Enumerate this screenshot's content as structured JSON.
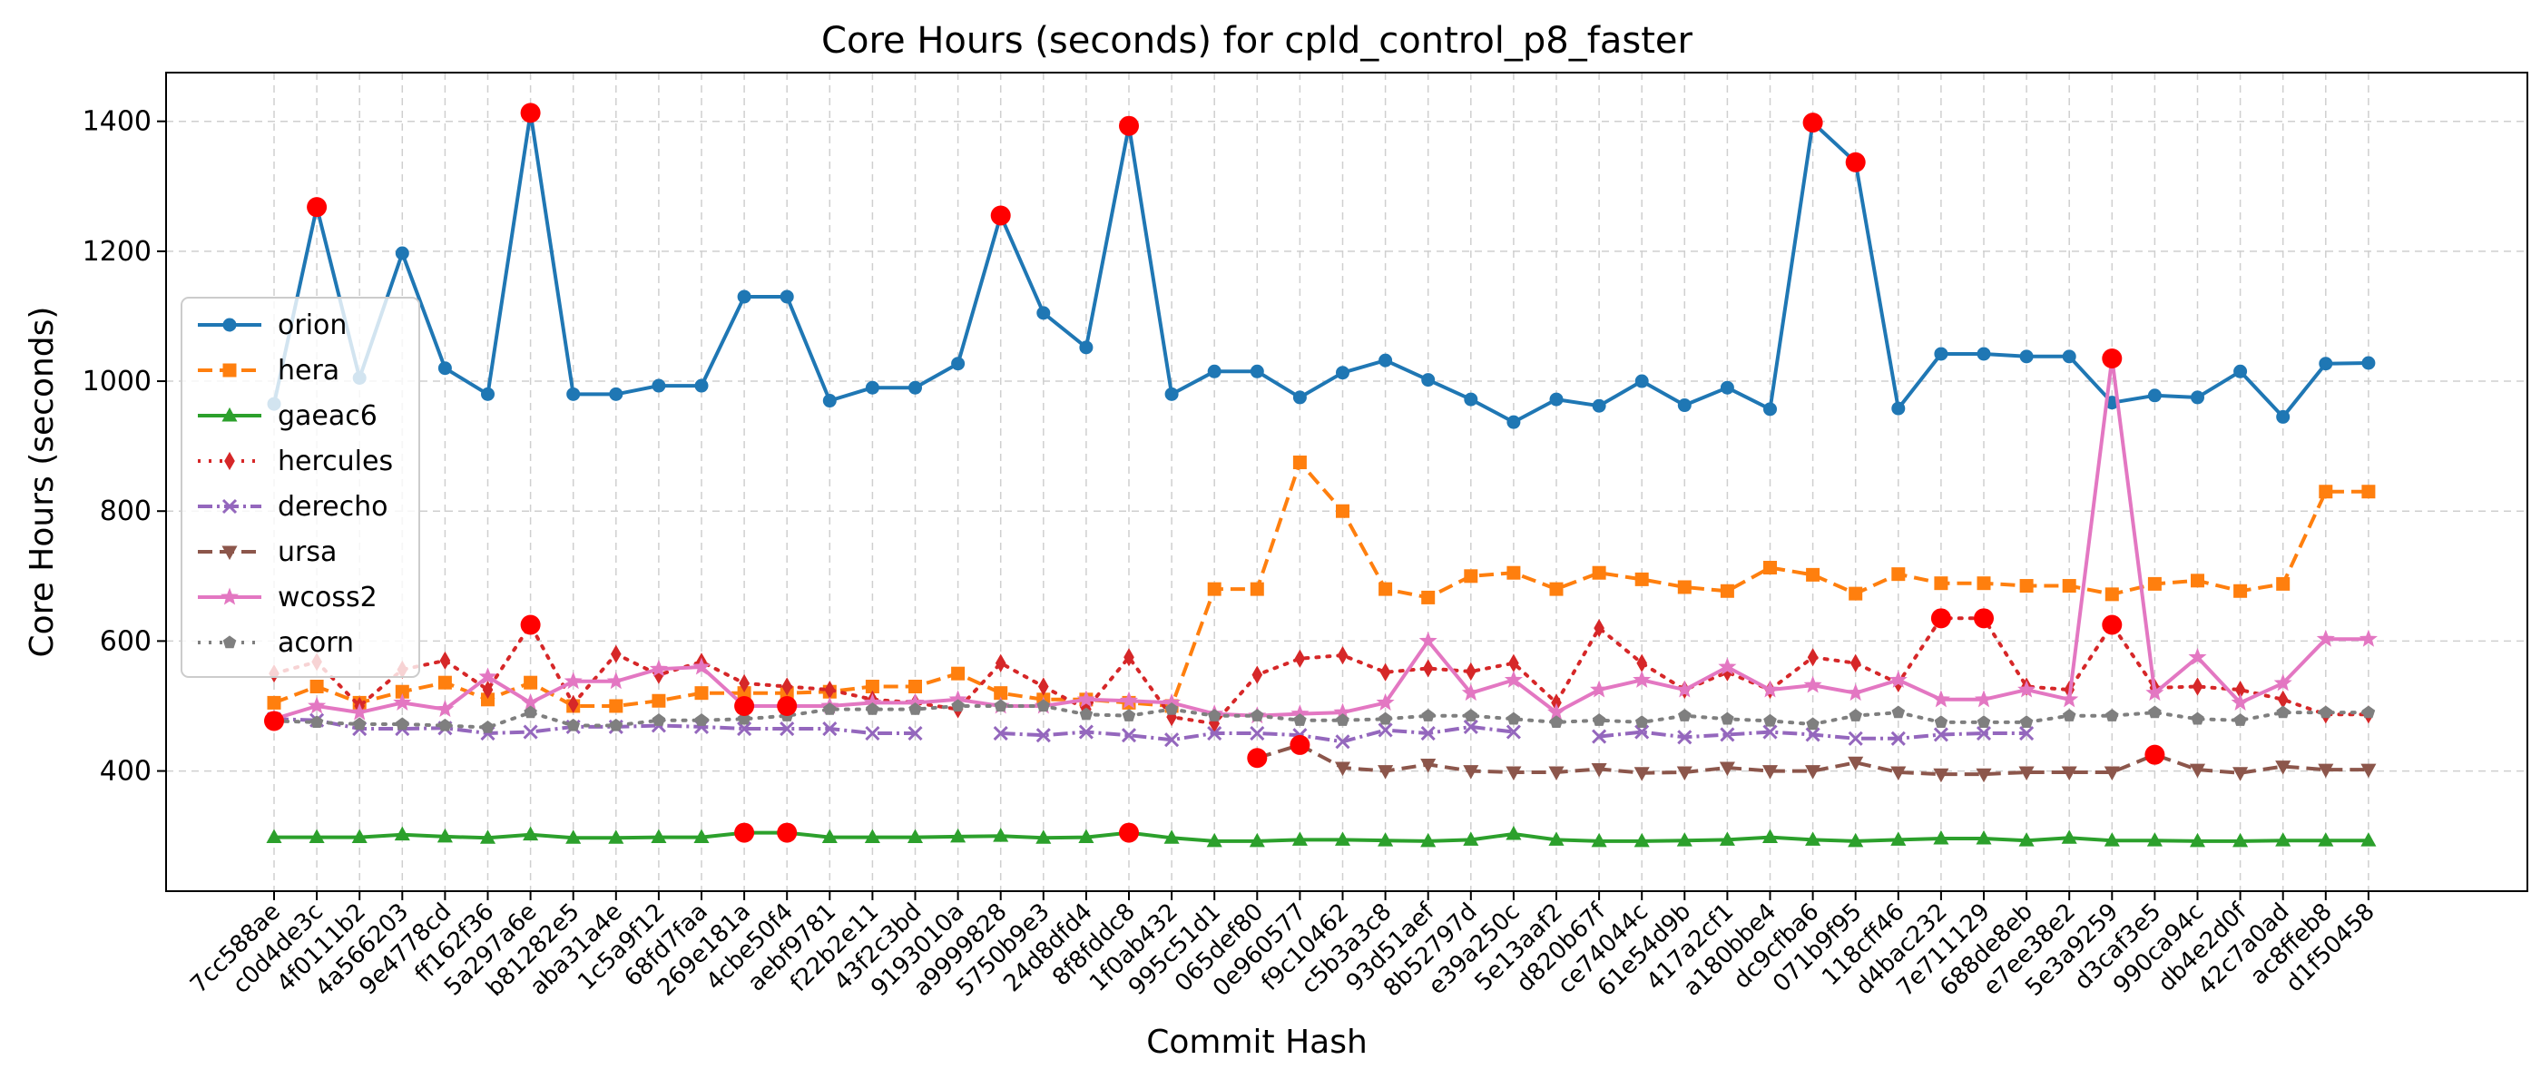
{
  "chart_data": {
    "type": "line",
    "title": "Core Hours (seconds) for cpld_control_p8_faster",
    "xlabel": "Commit Hash",
    "ylabel": "Core Hours (seconds)",
    "ylim": [
      215,
      1475
    ],
    "yticks": [
      400,
      600,
      800,
      1000,
      1200,
      1400
    ],
    "grid": true,
    "legend_position": "center-left",
    "categories": [
      "7cc588ae",
      "c0d4de3c",
      "4f0111b2",
      "4a566203",
      "9e4778cd",
      "ff162f36",
      "5a297a6e",
      "b81282e5",
      "aba31a4e",
      "1c5a9f12",
      "68fd7faa",
      "269e181a",
      "4cbe50f4",
      "aebf9781",
      "f22b2e11",
      "43f2c3bd",
      "9193010a",
      "a9999828",
      "5750b9e3",
      "24d8dfd4",
      "8f8fddc8",
      "1f0ab432",
      "995c51d1",
      "065def80",
      "0e960577",
      "f9c10462",
      "c5b3a3c8",
      "93d51aef",
      "8b52797d",
      "e39a250c",
      "5e13aaf2",
      "d820b67f",
      "ce74044c",
      "61e54d9b",
      "417a2cf1",
      "a180bbe4",
      "dc9cfba6",
      "071b9f95",
      "118cff46",
      "d4bac232",
      "7e711129",
      "688de8eb",
      "e7ee38e2",
      "5e3a9259",
      "d3caf3e5",
      "990ca94c",
      "db4e2d0f",
      "42c7a0ad",
      "ac8ffeb8",
      "d1f50458"
    ],
    "series": [
      {
        "name": "orion",
        "color": "#1f77b4",
        "dash": "",
        "marker": "circle",
        "values": [
          965,
          1268,
          1005,
          1197,
          1020,
          980,
          1413,
          980,
          980,
          993,
          993,
          1130,
          1130,
          970,
          990,
          990,
          1027,
          1255,
          1105,
          1052,
          1393,
          980,
          1015,
          1015,
          975,
          1013,
          1032,
          1002,
          972,
          937,
          972,
          962,
          1000,
          963,
          990,
          957,
          1398,
          1337,
          958,
          1042,
          1042,
          1038,
          1038,
          967,
          978,
          975,
          1015,
          945,
          1027,
          1028
        ]
      },
      {
        "name": "hera",
        "color": "#ff7f0e",
        "dash": "16 8",
        "marker": "square",
        "values": [
          505,
          530,
          505,
          522,
          536,
          510,
          536,
          500,
          500,
          508,
          520,
          520,
          520,
          522,
          530,
          530,
          550,
          520,
          510,
          510,
          505,
          500,
          680,
          680,
          875,
          800,
          680,
          667,
          700,
          705,
          680,
          705,
          695,
          683,
          677,
          713,
          702,
          673,
          703,
          689,
          689,
          685,
          685,
          672,
          688,
          693,
          677,
          688,
          830,
          830
        ]
      },
      {
        "name": "gaeac6",
        "color": "#2ca02c",
        "dash": "",
        "marker": "triangle-up",
        "values": [
          298,
          298,
          298,
          302,
          299,
          297,
          302,
          297,
          297,
          298,
          298,
          305,
          305,
          298,
          298,
          298,
          299,
          300,
          297,
          298,
          305,
          297,
          292,
          292,
          294,
          294,
          293,
          292,
          294,
          303,
          294,
          292,
          292,
          293,
          294,
          298,
          294,
          292,
          294,
          296,
          296,
          293,
          297,
          293,
          293,
          292,
          292,
          293,
          293,
          293
        ]
      },
      {
        "name": "hercules",
        "color": "#d62728",
        "dash": "3 9",
        "marker": "diamond",
        "values": [
          550,
          568,
          500,
          556,
          570,
          525,
          625,
          503,
          580,
          548,
          568,
          535,
          530,
          525,
          510,
          505,
          495,
          566,
          530,
          495,
          575,
          483,
          473,
          548,
          573,
          578,
          552,
          558,
          553,
          566,
          505,
          620,
          566,
          525,
          552,
          525,
          575,
          566,
          535,
          635,
          635,
          530,
          525,
          625,
          528,
          530,
          525,
          510,
          487,
          487
        ]
      },
      {
        "name": "derecho",
        "color": "#9467bd",
        "dash": "16 5 3 5",
        "marker": "x",
        "values": [
          480,
          478,
          465,
          465,
          466,
          458,
          460,
          468,
          468,
          470,
          468,
          465,
          465,
          465,
          458,
          458,
          null,
          458,
          455,
          460,
          455,
          448,
          458,
          458,
          455,
          445,
          463,
          458,
          468,
          460,
          null,
          453,
          460,
          452,
          456,
          460,
          456,
          450,
          450,
          456,
          458,
          458,
          null,
          null,
          null,
          null,
          null,
          null,
          null,
          null
        ]
      },
      {
        "name": "ursa",
        "color": "#8c564b",
        "dash": "16 8",
        "marker": "triangle-down",
        "values": [
          null,
          null,
          null,
          null,
          null,
          null,
          null,
          null,
          null,
          null,
          null,
          null,
          null,
          null,
          null,
          null,
          null,
          null,
          null,
          null,
          null,
          null,
          null,
          420,
          440,
          405,
          400,
          410,
          400,
          398,
          398,
          403,
          397,
          398,
          405,
          400,
          400,
          413,
          398,
          395,
          395,
          398,
          398,
          398,
          425,
          402,
          397,
          407,
          402,
          402
        ]
      },
      {
        "name": "wcoss2",
        "color": "#e377c2",
        "dash": "",
        "marker": "star",
        "values": [
          480,
          500,
          490,
          505,
          495,
          545,
          505,
          538,
          538,
          557,
          560,
          500,
          500,
          500,
          505,
          505,
          510,
          500,
          500,
          510,
          508,
          505,
          488,
          485,
          488,
          490,
          505,
          600,
          520,
          540,
          490,
          525,
          540,
          525,
          560,
          525,
          532,
          520,
          540,
          510,
          510,
          525,
          510,
          1035,
          520,
          575,
          505,
          535,
          603,
          603
        ]
      },
      {
        "name": "acorn",
        "color": "#7f7f7f",
        "dash": "3 9",
        "marker": "pentagon",
        "values": [
          477,
          475,
          472,
          472,
          470,
          467,
          490,
          470,
          470,
          478,
          478,
          480,
          485,
          495,
          495,
          495,
          500,
          500,
          500,
          487,
          485,
          495,
          485,
          485,
          478,
          478,
          480,
          485,
          485,
          480,
          475,
          478,
          475,
          485,
          480,
          477,
          472,
          485,
          490,
          475,
          475,
          475,
          485,
          485,
          490,
          480,
          478,
          490,
          490,
          490
        ]
      }
    ],
    "outliers": [
      {
        "x": "7cc588ae",
        "y": 477
      },
      {
        "x": "c0d4de3c",
        "y": 1268
      },
      {
        "x": "5a297a6e",
        "y": 1413
      },
      {
        "x": "5a297a6e",
        "y": 625
      },
      {
        "x": "269e181a",
        "y": 500
      },
      {
        "x": "4cbe50f4",
        "y": 500
      },
      {
        "x": "269e181a",
        "y": 305
      },
      {
        "x": "4cbe50f4",
        "y": 305
      },
      {
        "x": "a9999828",
        "y": 1255
      },
      {
        "x": "8f8fddc8",
        "y": 1393
      },
      {
        "x": "8f8fddc8",
        "y": 305
      },
      {
        "x": "065def80",
        "y": 420
      },
      {
        "x": "0e960577",
        "y": 440
      },
      {
        "x": "dc9cfba6",
        "y": 1398
      },
      {
        "x": "071b9f95",
        "y": 1337
      },
      {
        "x": "d4bac232",
        "y": 635
      },
      {
        "x": "7e711129",
        "y": 635
      },
      {
        "x": "5e3a9259",
        "y": 1035
      },
      {
        "x": "5e3a9259",
        "y": 625
      },
      {
        "x": "d3caf3e5",
        "y": 425
      }
    ],
    "outlier_color": "#ff0000"
  }
}
